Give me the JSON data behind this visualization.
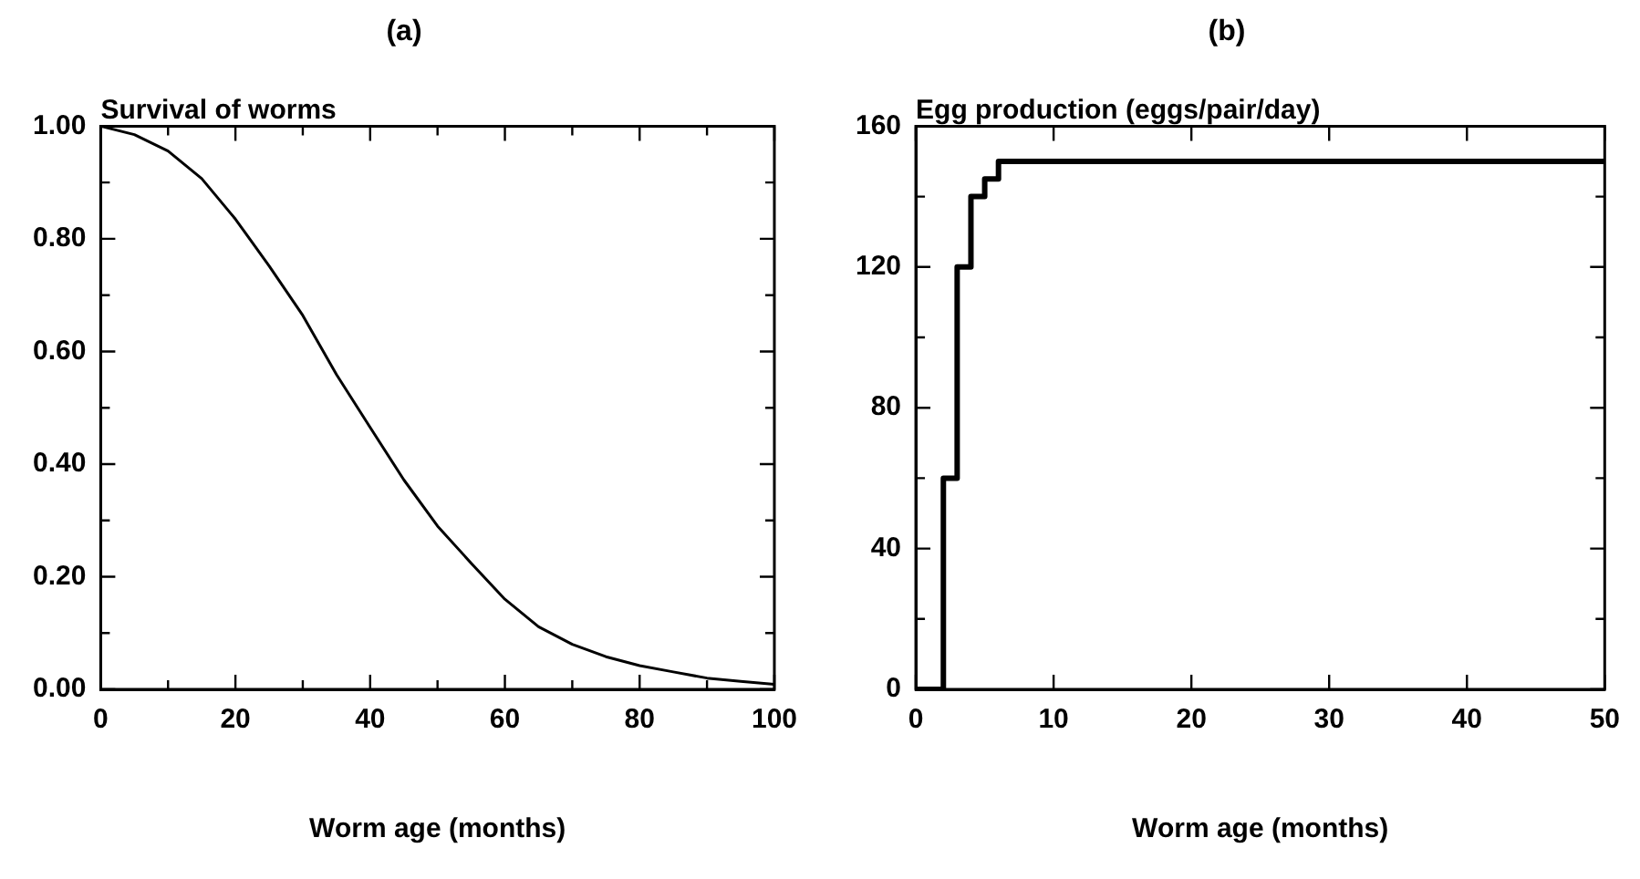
{
  "chart_data": [
    {
      "type": "line",
      "title": "(a)",
      "ylabel": "Survival of worms",
      "xlabel": "Worm age (months)",
      "marker": "none",
      "grid": false,
      "x": [
        0,
        5,
        10,
        15,
        20,
        25,
        30,
        35,
        40,
        45,
        50,
        55,
        60,
        65,
        70,
        75,
        80,
        85,
        90,
        95,
        100
      ],
      "series": [
        {
          "color": "#000000",
          "values": [
            1.0,
            0.985,
            0.956,
            0.907,
            0.835,
            0.752,
            0.664,
            0.559,
            0.465,
            0.372,
            0.29,
            0.224,
            0.16,
            0.111,
            0.08,
            0.058,
            0.042,
            0.031,
            0.02,
            0.014,
            0.009
          ]
        }
      ],
      "xlim": [
        0,
        100
      ],
      "xticks": [
        0,
        {
          "value": 10,
          "label": null
        },
        20,
        {
          "value": 30,
          "label": null
        },
        40,
        {
          "value": 50,
          "label": null
        },
        60,
        {
          "value": 70,
          "label": null
        },
        80,
        {
          "value": 90,
          "label": null
        },
        100
      ],
      "ylim": [
        0,
        1
      ],
      "yticks": [
        {
          "value": 0,
          "label": "0.00"
        },
        {
          "value": 0.1,
          "label": null
        },
        {
          "value": 0.2,
          "label": "0.20"
        },
        {
          "value": 0.3,
          "label": null
        },
        {
          "value": 0.4,
          "label": "0.40"
        },
        {
          "value": 0.5,
          "label": null
        },
        {
          "value": 0.6,
          "label": "0.60"
        },
        {
          "value": 0.7,
          "label": null
        },
        {
          "value": 0.8,
          "label": "0.80"
        },
        {
          "value": 0.9,
          "label": null
        },
        {
          "value": 1,
          "label": "1.00"
        }
      ]
    },
    {
      "type": "step",
      "title": "(b)",
      "ylabel": "Egg production (eggs/pair/day)",
      "xlabel": "Worm age (months)",
      "marker": "none",
      "grid": false,
      "x": [
        0,
        2,
        3,
        4,
        5,
        6,
        50
      ],
      "series": [
        {
          "color": "#000000",
          "values": [
            0,
            60,
            120,
            140,
            145,
            150,
            150
          ]
        }
      ],
      "xlim": [
        0,
        50
      ],
      "xticks": [
        0,
        10,
        20,
        30,
        40,
        50
      ],
      "ylim": [
        0,
        160
      ],
      "yticks": [
        0,
        {
          "value": 20,
          "label": null
        },
        40,
        {
          "value": 60,
          "label": null
        },
        80,
        {
          "value": 100,
          "label": null
        },
        120,
        {
          "value": 140,
          "label": null
        },
        160
      ]
    }
  ]
}
